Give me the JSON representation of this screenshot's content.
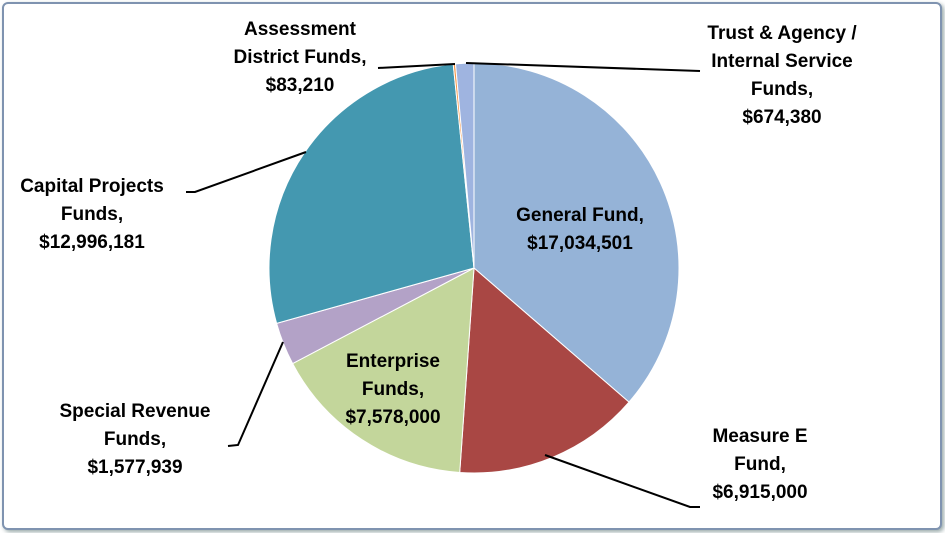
{
  "chart_data": {
    "type": "pie",
    "categories": [
      "General Fund,",
      "Measure E Fund,",
      "Enterprise Funds,",
      "Special Revenue Funds,",
      "Capital Projects Funds,",
      "Assessment District Funds,",
      "Trust & Agency / Internal Service Funds,"
    ],
    "values": [
      17034501,
      6915000,
      7578000,
      1577939,
      12996181,
      83210,
      674380
    ],
    "value_labels": [
      "$17,034,501",
      "$6,915,000",
      "$7,578,000",
      "$1,577,939",
      "$12,996,181",
      "$83,210",
      "$674,380"
    ],
    "colors": [
      "#95b3d7",
      "#a94744",
      "#c3d69b",
      "#b3a2c7",
      "#4498b0",
      "#f79646",
      "#9fb4e0"
    ]
  }
}
